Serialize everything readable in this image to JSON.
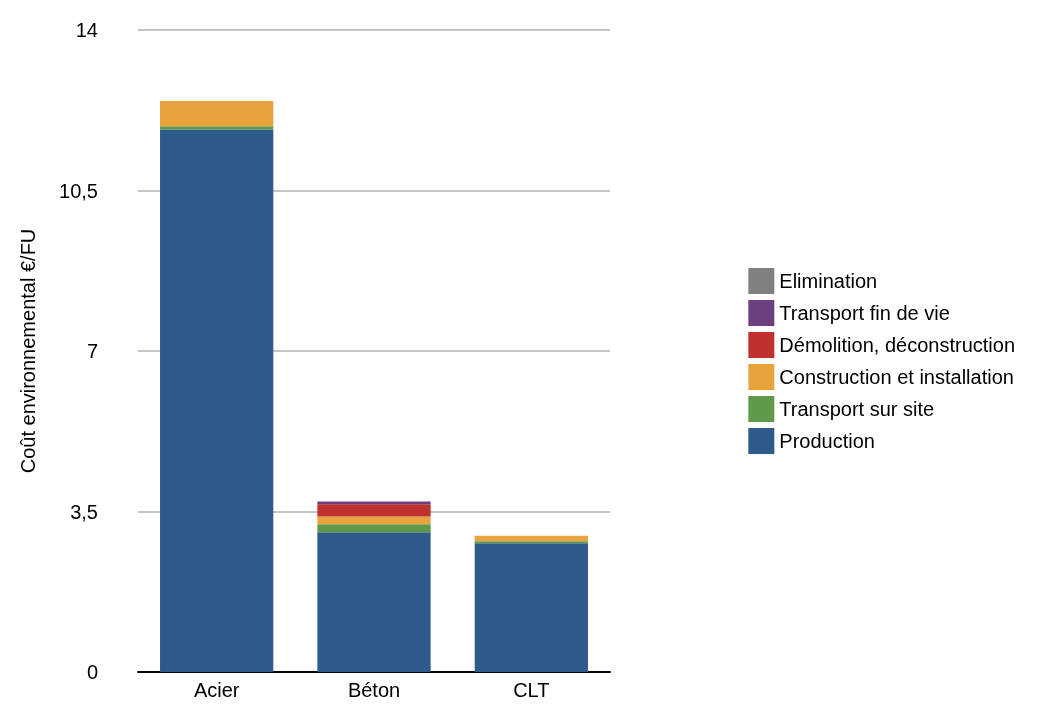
{
  "chart_data": {
    "type": "bar",
    "stacked": true,
    "ylabel": "Coût environnemental €/FU",
    "categories": [
      "Acier",
      "Béton",
      "CLT"
    ],
    "series": [
      {
        "name": "Production",
        "color": "#2e5a8c",
        "values": [
          11.83,
          3.05,
          2.81
        ]
      },
      {
        "name": "Transport sur site",
        "color": "#5e9a49",
        "values": [
          0.07,
          0.17,
          0.04
        ]
      },
      {
        "name": "Construction et installation",
        "color": "#e8a33e",
        "values": [
          0.55,
          0.17,
          0.12
        ]
      },
      {
        "name": "Démolition, déconstruction",
        "color": "#c0302f",
        "values": [
          0,
          0.27,
          0
        ]
      },
      {
        "name": "Transport fin de vie",
        "color": "#6e3f7e",
        "values": [
          0,
          0.06,
          0
        ]
      },
      {
        "name": "Elimination",
        "color": "#808080",
        "values": [
          0,
          0,
          0
        ]
      }
    ],
    "ylim": [
      0,
      14
    ],
    "yticks": [
      0,
      {
        "value": 3.5,
        "label": "3,5"
      },
      7,
      {
        "value": 10.5,
        "label": "10,5"
      },
      14
    ],
    "grid": "y",
    "legend": "right"
  }
}
